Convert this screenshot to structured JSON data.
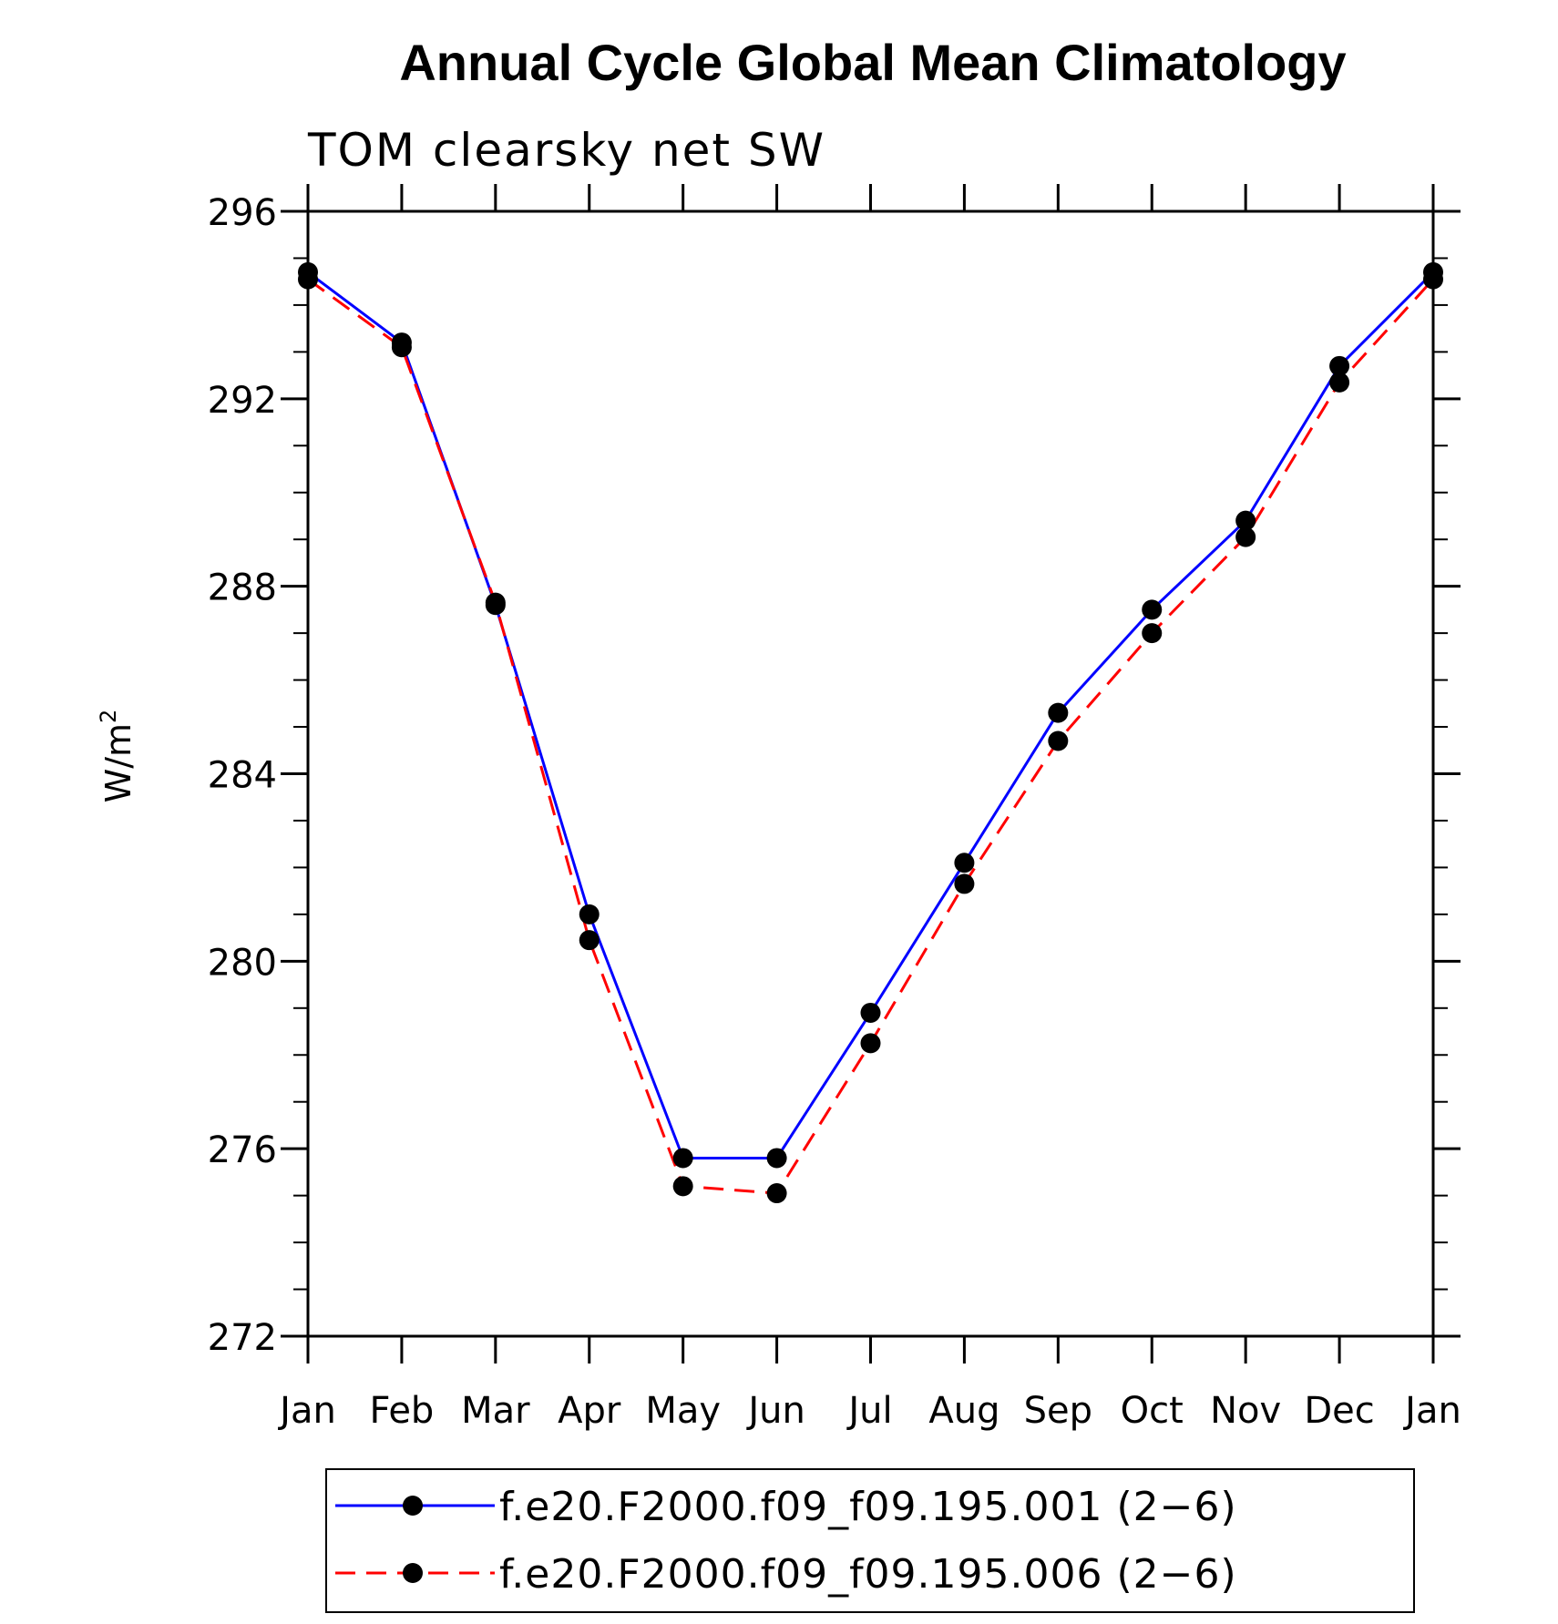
{
  "chart_data": {
    "type": "line",
    "title": "Annual Cycle Global Mean Climatology",
    "subtitle": "TOM clearsky net SW",
    "xlabel": "",
    "ylabel": "W/m",
    "ylabel_superscript": "2",
    "categories": [
      "Jan",
      "Feb",
      "Mar",
      "Apr",
      "May",
      "Jun",
      "Jul",
      "Aug",
      "Sep",
      "Oct",
      "Nov",
      "Dec",
      "Jan"
    ],
    "ylim": [
      272,
      296
    ],
    "yticks": [
      272,
      276,
      280,
      284,
      288,
      292,
      296
    ],
    "y_minor_step": 1,
    "grid": false,
    "legend_position": "bottom",
    "series": [
      {
        "name": "f.e20.F2000.f09_f09.195.001 (2−6)",
        "color": "#0000ff",
        "dash": "solid",
        "marker": "filled-circle",
        "values": [
          294.7,
          293.2,
          287.6,
          281.0,
          275.8,
          275.8,
          278.9,
          282.1,
          285.3,
          287.5,
          289.4,
          292.7,
          294.7
        ]
      },
      {
        "name": "f.e20.F2000.f09_f09.195.006 (2−6)",
        "color": "#ff0000",
        "dash": "dashed",
        "marker": "filled-circle",
        "values": [
          294.55,
          293.1,
          287.65,
          280.45,
          275.2,
          275.05,
          278.25,
          281.65,
          284.7,
          287.0,
          289.05,
          292.35,
          294.55
        ]
      }
    ]
  }
}
